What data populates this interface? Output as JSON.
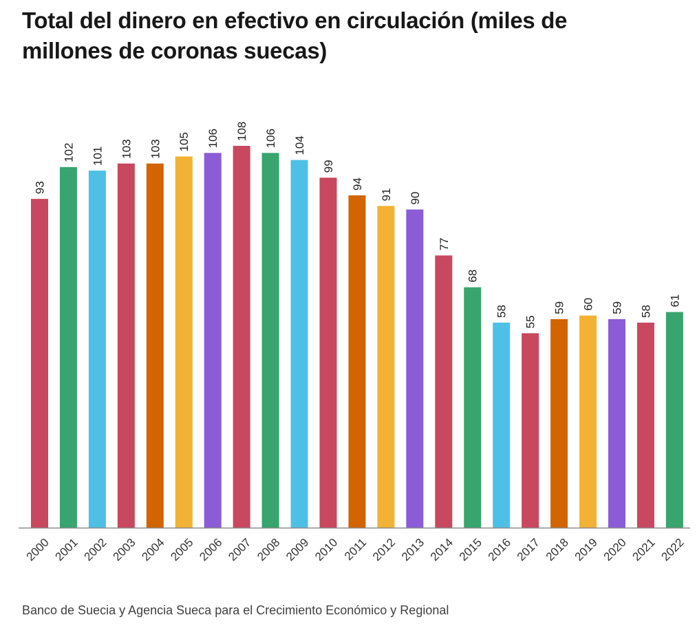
{
  "chart_data": {
    "type": "bar",
    "title": "Total del dinero en efectivo en circulación (miles de millones de coronas suecas)",
    "xlabel": "",
    "ylabel": "",
    "ylim": [
      0,
      108
    ],
    "grid": false,
    "legend": "none",
    "categories": [
      "2000",
      "2001",
      "2002",
      "2003",
      "2004",
      "2005",
      "2006",
      "2007",
      "2008",
      "2009",
      "2010",
      "2011",
      "2012",
      "2013",
      "2014",
      "2015",
      "2016",
      "2017",
      "2018",
      "2019",
      "2020",
      "2021",
      "2022"
    ],
    "values": [
      93,
      102,
      101,
      103,
      103,
      105,
      106,
      108,
      106,
      104,
      99,
      94,
      91,
      90,
      77,
      68,
      58,
      55,
      59,
      60,
      59,
      58,
      61
    ],
    "colors": [
      "#c8485f",
      "#38a56e",
      "#4ec0e6",
      "#c8485f",
      "#d26500",
      "#f2b233",
      "#8b5cd6",
      "#c8485f",
      "#38a56e",
      "#4ec0e6",
      "#c8485f",
      "#d26500",
      "#f2b233",
      "#8b5cd6",
      "#c8485f",
      "#38a56e",
      "#4ec0e6",
      "#c8485f",
      "#d26500",
      "#f2b233",
      "#8b5cd6",
      "#c8485f",
      "#38a56e"
    ],
    "data_labels": [
      "93",
      "102",
      "101",
      "103",
      "103",
      "105",
      "106",
      "108",
      "106",
      "104",
      "99",
      "94",
      "91",
      "90",
      "77",
      "68",
      "58",
      "55",
      "59",
      "60",
      "59",
      "58",
      "61"
    ]
  },
  "source": "Banco de Suecia y Agencia Sueca para el Crecimiento Económico y Regional",
  "axis_color": "#8a8a8a"
}
